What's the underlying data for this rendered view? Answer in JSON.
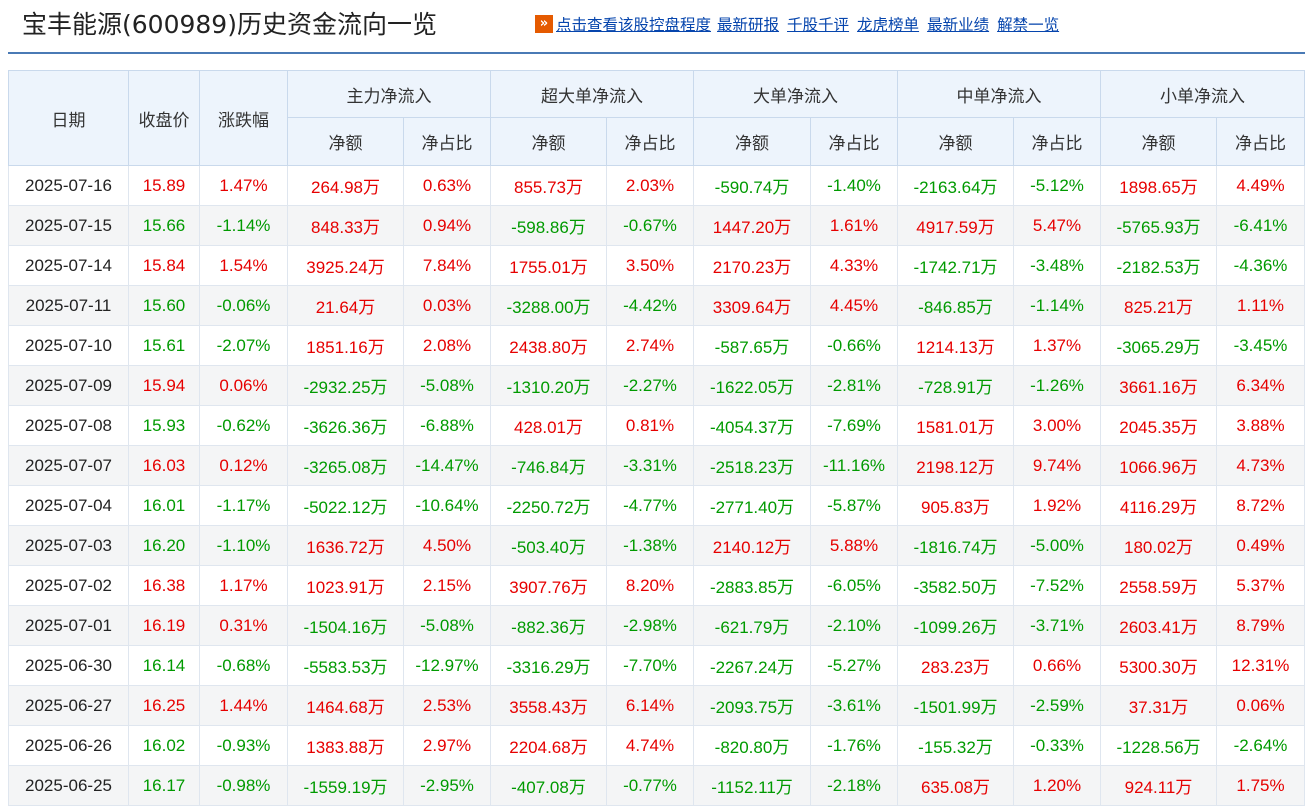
{
  "page": {
    "title": "宝丰能源(600989)历史资金流向一览",
    "link_arrow": "»",
    "links": [
      "点击查看该股控盘程度",
      "最新研报",
      "千股千评",
      "龙虎榜单",
      "最新业绩",
      "解禁一览"
    ]
  },
  "colors": {
    "up": "#e60000",
    "down": "#009a00",
    "header_bg": "#edf4fc",
    "rule": "#4a7ab5"
  },
  "table": {
    "headers": {
      "date": "日期",
      "close": "收盘价",
      "change": "涨跌幅",
      "groups": [
        "主力净流入",
        "超大单净流入",
        "大单净流入",
        "中单净流入",
        "小单净流入"
      ],
      "sub_amount": "净额",
      "sub_ratio": "净占比"
    },
    "rows": [
      [
        "2025-07-16",
        "15.89",
        "1.47%",
        "264.98万",
        "0.63%",
        "855.73万",
        "2.03%",
        "-590.74万",
        "-1.40%",
        "-2163.64万",
        "-5.12%",
        "1898.65万",
        "4.49%"
      ],
      [
        "2025-07-15",
        "15.66",
        "-1.14%",
        "848.33万",
        "0.94%",
        "-598.86万",
        "-0.67%",
        "1447.20万",
        "1.61%",
        "4917.59万",
        "5.47%",
        "-5765.93万",
        "-6.41%"
      ],
      [
        "2025-07-14",
        "15.84",
        "1.54%",
        "3925.24万",
        "7.84%",
        "1755.01万",
        "3.50%",
        "2170.23万",
        "4.33%",
        "-1742.71万",
        "-3.48%",
        "-2182.53万",
        "-4.36%"
      ],
      [
        "2025-07-11",
        "15.60",
        "-0.06%",
        "21.64万",
        "0.03%",
        "-3288.00万",
        "-4.42%",
        "3309.64万",
        "4.45%",
        "-846.85万",
        "-1.14%",
        "825.21万",
        "1.11%"
      ],
      [
        "2025-07-10",
        "15.61",
        "-2.07%",
        "1851.16万",
        "2.08%",
        "2438.80万",
        "2.74%",
        "-587.65万",
        "-0.66%",
        "1214.13万",
        "1.37%",
        "-3065.29万",
        "-3.45%"
      ],
      [
        "2025-07-09",
        "15.94",
        "0.06%",
        "-2932.25万",
        "-5.08%",
        "-1310.20万",
        "-2.27%",
        "-1622.05万",
        "-2.81%",
        "-728.91万",
        "-1.26%",
        "3661.16万",
        "6.34%"
      ],
      [
        "2025-07-08",
        "15.93",
        "-0.62%",
        "-3626.36万",
        "-6.88%",
        "428.01万",
        "0.81%",
        "-4054.37万",
        "-7.69%",
        "1581.01万",
        "3.00%",
        "2045.35万",
        "3.88%"
      ],
      [
        "2025-07-07",
        "16.03",
        "0.12%",
        "-3265.08万",
        "-14.47%",
        "-746.84万",
        "-3.31%",
        "-2518.23万",
        "-11.16%",
        "2198.12万",
        "9.74%",
        "1066.96万",
        "4.73%"
      ],
      [
        "2025-07-04",
        "16.01",
        "-1.17%",
        "-5022.12万",
        "-10.64%",
        "-2250.72万",
        "-4.77%",
        "-2771.40万",
        "-5.87%",
        "905.83万",
        "1.92%",
        "4116.29万",
        "8.72%"
      ],
      [
        "2025-07-03",
        "16.20",
        "-1.10%",
        "1636.72万",
        "4.50%",
        "-503.40万",
        "-1.38%",
        "2140.12万",
        "5.88%",
        "-1816.74万",
        "-5.00%",
        "180.02万",
        "0.49%"
      ],
      [
        "2025-07-02",
        "16.38",
        "1.17%",
        "1023.91万",
        "2.15%",
        "3907.76万",
        "8.20%",
        "-2883.85万",
        "-6.05%",
        "-3582.50万",
        "-7.52%",
        "2558.59万",
        "5.37%"
      ],
      [
        "2025-07-01",
        "16.19",
        "0.31%",
        "-1504.16万",
        "-5.08%",
        "-882.36万",
        "-2.98%",
        "-621.79万",
        "-2.10%",
        "-1099.26万",
        "-3.71%",
        "2603.41万",
        "8.79%"
      ],
      [
        "2025-06-30",
        "16.14",
        "-0.68%",
        "-5583.53万",
        "-12.97%",
        "-3316.29万",
        "-7.70%",
        "-2267.24万",
        "-5.27%",
        "283.23万",
        "0.66%",
        "5300.30万",
        "12.31%"
      ],
      [
        "2025-06-27",
        "16.25",
        "1.44%",
        "1464.68万",
        "2.53%",
        "3558.43万",
        "6.14%",
        "-2093.75万",
        "-3.61%",
        "-1501.99万",
        "-2.59%",
        "37.31万",
        "0.06%"
      ],
      [
        "2025-06-26",
        "16.02",
        "-0.93%",
        "1383.88万",
        "2.97%",
        "2204.68万",
        "4.74%",
        "-820.80万",
        "-1.76%",
        "-155.32万",
        "-0.33%",
        "-1228.56万",
        "-2.64%"
      ],
      [
        "2025-06-25",
        "16.17",
        "-0.98%",
        "-1559.19万",
        "-2.95%",
        "-407.08万",
        "-0.77%",
        "-1152.11万",
        "-2.18%",
        "635.08万",
        "1.20%",
        "924.11万",
        "1.75%"
      ]
    ]
  }
}
